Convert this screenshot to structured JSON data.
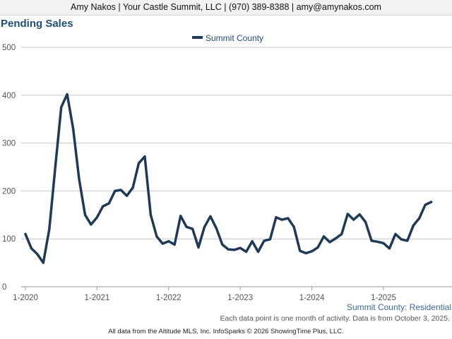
{
  "header": {
    "text": "Amy Nakos | Your Castle Summit, LLC | (970) 389-8388 | amy@amynakos.com"
  },
  "footer": {
    "series_label": "Summit County: Residential",
    "note": "Each data point is one month of activity. Data is from October 3, 2025.",
    "credit": "All data from the Altitude MLS, Inc. InfoSparks © 2026 ShowingTime Plus, LLC."
  },
  "colors": {
    "line": "#1f3a56",
    "title": "#1f4e79",
    "grid": "#c8c8c8",
    "axis": "#9a9a9a"
  },
  "chart_data": {
    "type": "line",
    "title": "Pending Sales",
    "xlabel": "",
    "ylabel": "",
    "ylim": [
      0,
      500
    ],
    "yticks": [
      "0",
      "100",
      "200",
      "300",
      "400",
      "500"
    ],
    "xticks": [
      "1-2020",
      "1-2021",
      "1-2022",
      "1-2023",
      "1-2024",
      "1-2025"
    ],
    "grid": true,
    "legend": "top-center",
    "x": [
      "2020-01",
      "2020-02",
      "2020-03",
      "2020-04",
      "2020-05",
      "2020-06",
      "2020-07",
      "2020-08",
      "2020-09",
      "2020-10",
      "2020-11",
      "2020-12",
      "2021-01",
      "2021-02",
      "2021-03",
      "2021-04",
      "2021-05",
      "2021-06",
      "2021-07",
      "2021-08",
      "2021-09",
      "2021-10",
      "2021-11",
      "2021-12",
      "2022-01",
      "2022-02",
      "2022-03",
      "2022-04",
      "2022-05",
      "2022-06",
      "2022-07",
      "2022-08",
      "2022-09",
      "2022-10",
      "2022-11",
      "2022-12",
      "2023-01",
      "2023-02",
      "2023-03",
      "2023-04",
      "2023-05",
      "2023-06",
      "2023-07",
      "2023-08",
      "2023-09",
      "2023-10",
      "2023-11",
      "2023-12",
      "2024-01",
      "2024-02",
      "2024-03",
      "2024-04",
      "2024-05",
      "2024-06",
      "2024-07",
      "2024-08",
      "2024-09",
      "2024-10",
      "2024-11",
      "2024-12",
      "2025-01",
      "2025-02",
      "2025-03",
      "2025-04",
      "2025-05",
      "2025-06",
      "2025-07",
      "2025-08",
      "2025-09"
    ],
    "series": [
      {
        "name": "Summit County",
        "values": [
          110,
          80,
          68,
          50,
          120,
          250,
          375,
          402,
          330,
          225,
          150,
          130,
          145,
          168,
          174,
          200,
          202,
          190,
          207,
          258,
          272,
          150,
          105,
          90,
          95,
          88,
          148,
          125,
          121,
          82,
          125,
          147,
          122,
          88,
          78,
          77,
          81,
          73,
          95,
          73,
          96,
          99,
          145,
          140,
          143,
          125,
          75,
          70,
          74,
          82,
          105,
          93,
          101,
          110,
          152,
          140,
          151,
          135,
          96,
          94,
          91,
          80,
          110,
          99,
          96,
          128,
          143,
          171,
          177
        ]
      }
    ]
  }
}
